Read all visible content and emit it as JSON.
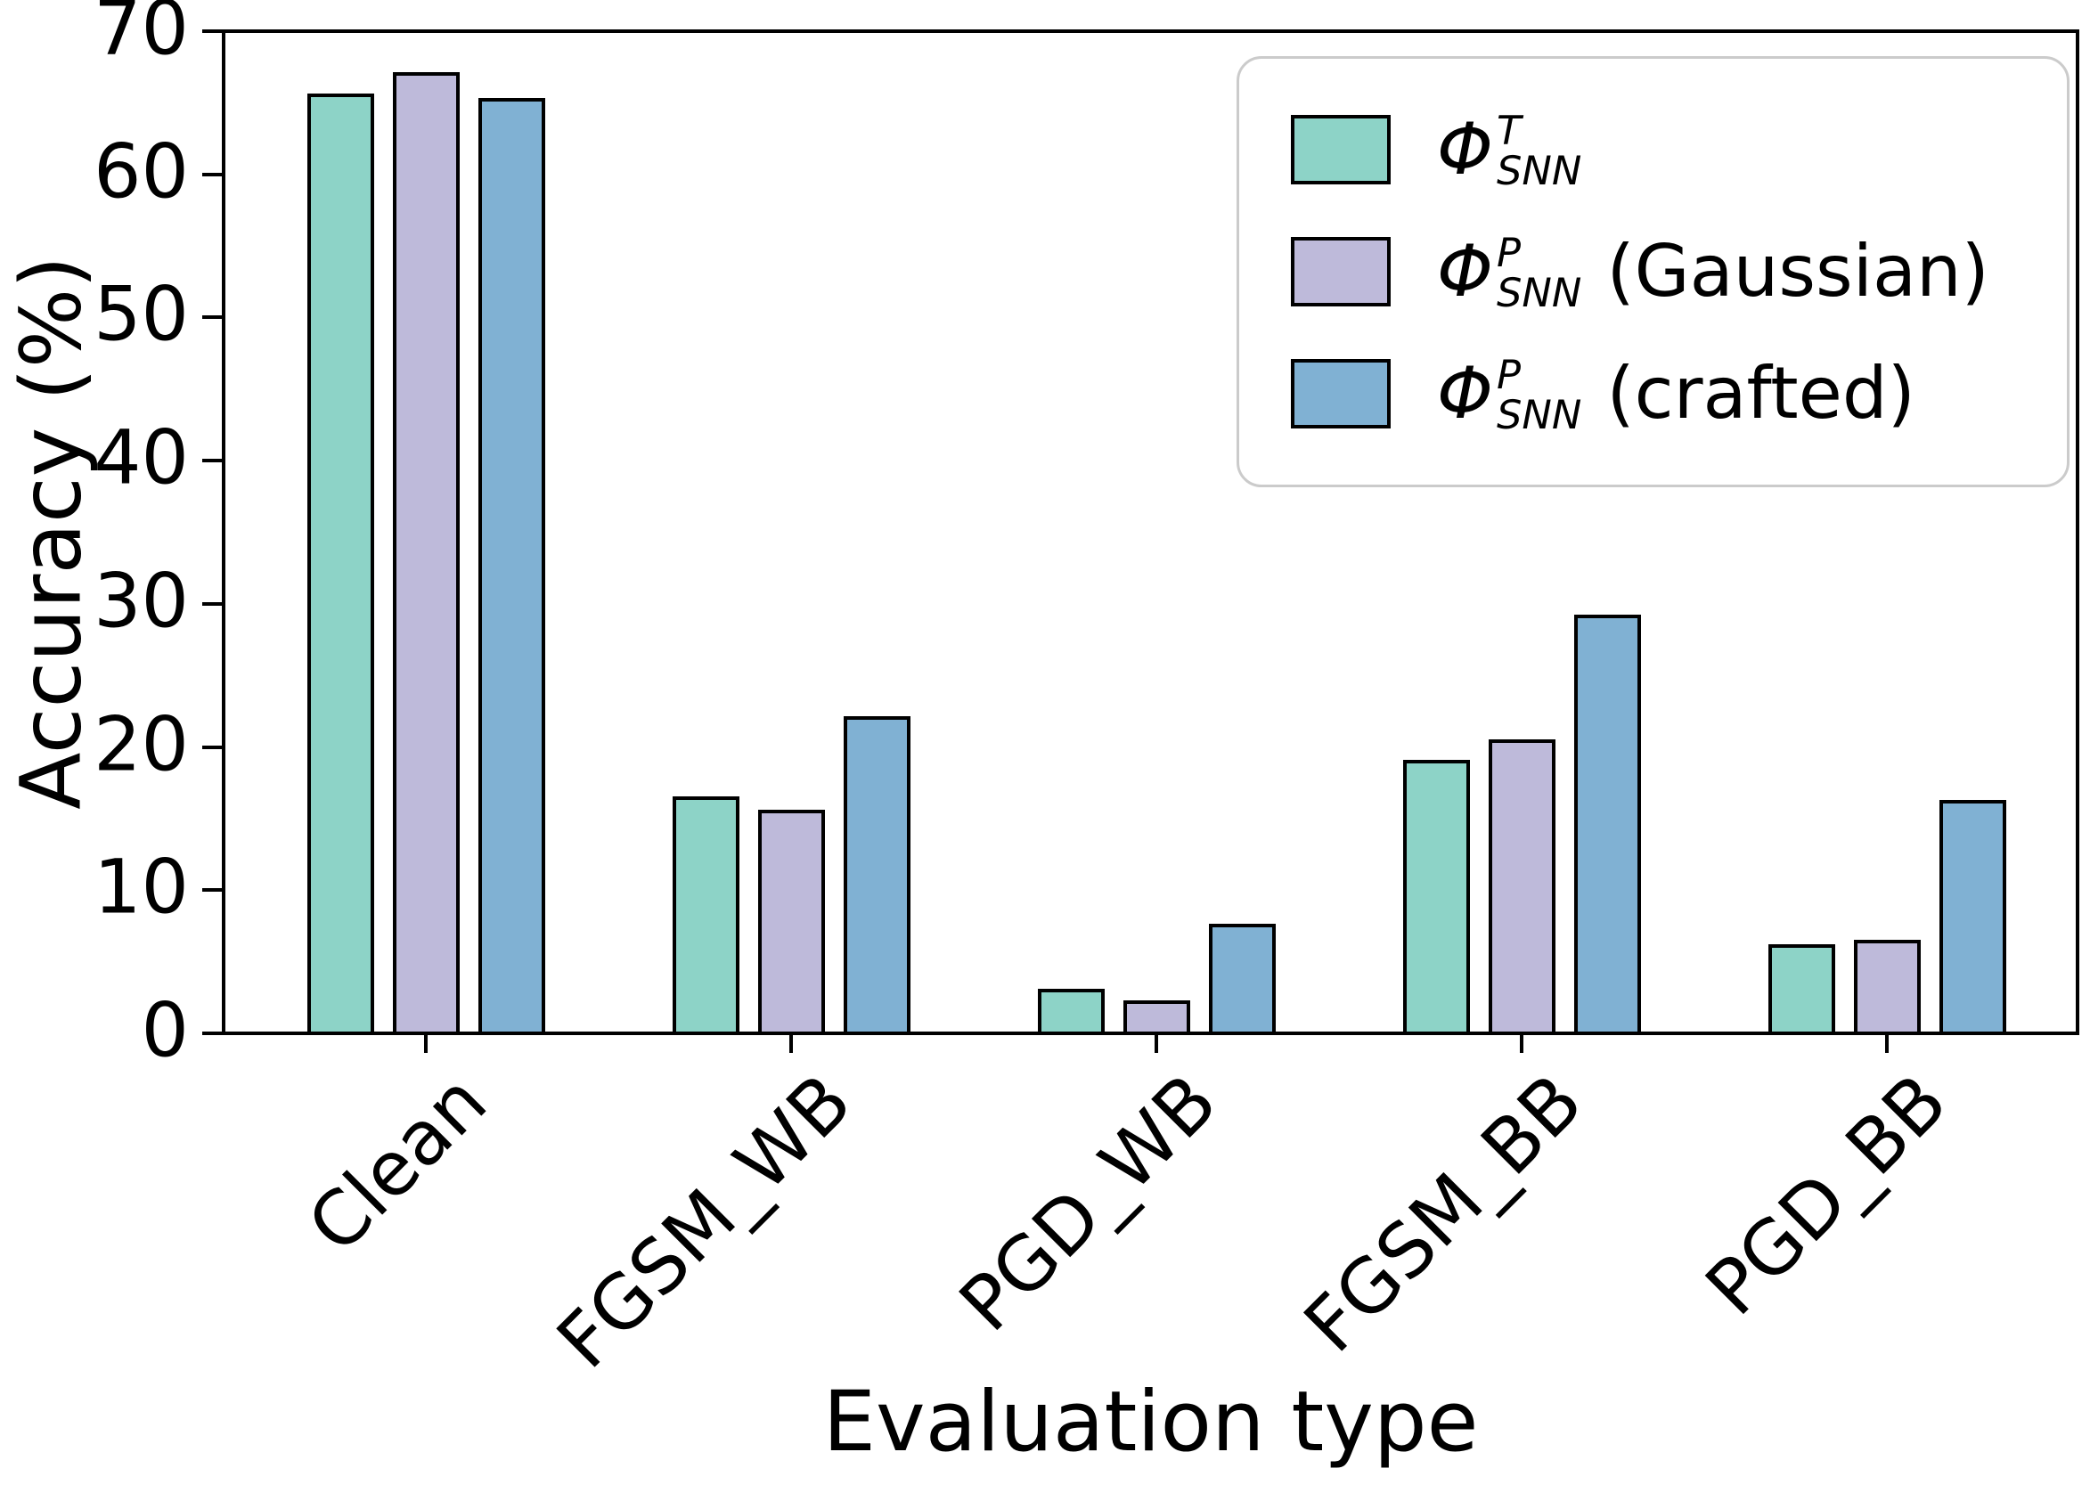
{
  "chart_data": {
    "type": "bar",
    "title": "",
    "xlabel": "Evaluation type",
    "ylabel": "Accuracy (%)",
    "categories": [
      "Clean",
      "FGSM_WB",
      "PGD_WB",
      "FGSM_BB",
      "PGD_BB"
    ],
    "series": [
      {
        "name": "Phi_SNN_T",
        "legend_phi": "Φ",
        "legend_sup": "T",
        "legend_sub": "SNN",
        "legend_suffix": "",
        "color": "#8dd3c7",
        "values": [
          65.5,
          16.4,
          3.0,
          19.0,
          6.1
        ]
      },
      {
        "name": "Phi_SNN_P_gaussian",
        "legend_phi": "Φ",
        "legend_sup": "P",
        "legend_sub": "SNN",
        "legend_suffix": "(Gaussian)",
        "color": "#bebada",
        "values": [
          67.0,
          15.5,
          2.2,
          20.4,
          6.4
        ]
      },
      {
        "name": "Phi_SNN_P_crafted",
        "legend_phi": "Φ",
        "legend_sup": "P",
        "legend_sub": "SNN",
        "legend_suffix": "(crafted)",
        "color": "#80b1d3",
        "values": [
          65.2,
          22.0,
          7.5,
          29.1,
          16.2
        ]
      }
    ],
    "ylim": [
      0,
      70
    ],
    "yticks": [
      0,
      10,
      20,
      30,
      40,
      50,
      60,
      70
    ],
    "grid": false,
    "legend_position": "upper right",
    "bar_edge_color": "#000000",
    "spine_color": "#000000"
  }
}
